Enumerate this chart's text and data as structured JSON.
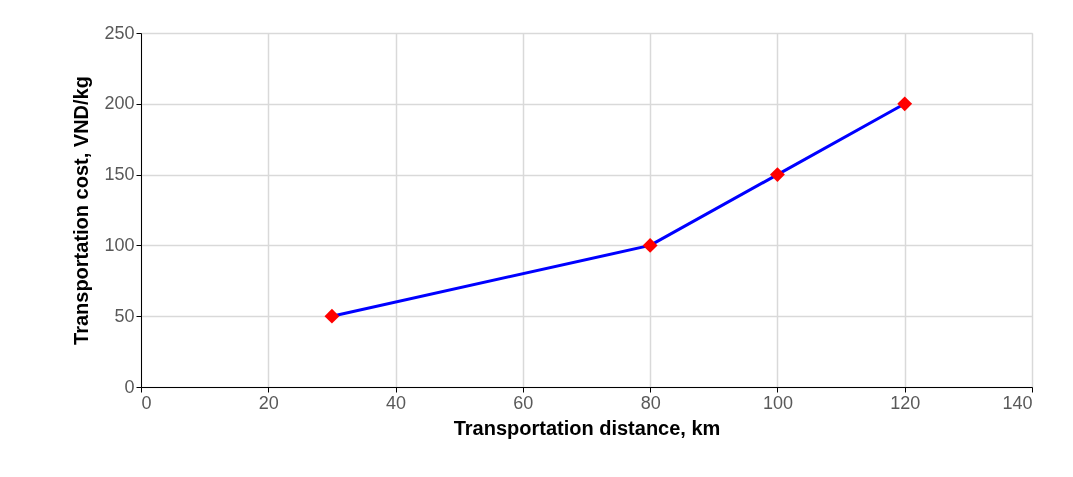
{
  "chart_data": {
    "type": "line",
    "xlabel": "Transportation distance, km",
    "ylabel": "Transportation cost, VND/kg",
    "series": [
      {
        "color": "#0000ff",
        "colors": [
          "#ff0000",
          "#ff0000",
          "#ff0000",
          "#ff0000"
        ],
        "x": [
          30,
          80,
          100,
          120
        ],
        "values": [
          50,
          100,
          150,
          200
        ]
      }
    ],
    "xlim": [
      0,
      140
    ],
    "xticks": [
      0,
      20,
      40,
      60,
      80,
      100,
      120,
      140
    ],
    "ylim": [
      0,
      250
    ],
    "yticks": [
      0,
      50,
      100,
      150,
      200,
      250
    ],
    "grid": true,
    "marker": "diamond",
    "line_style": "solid"
  }
}
